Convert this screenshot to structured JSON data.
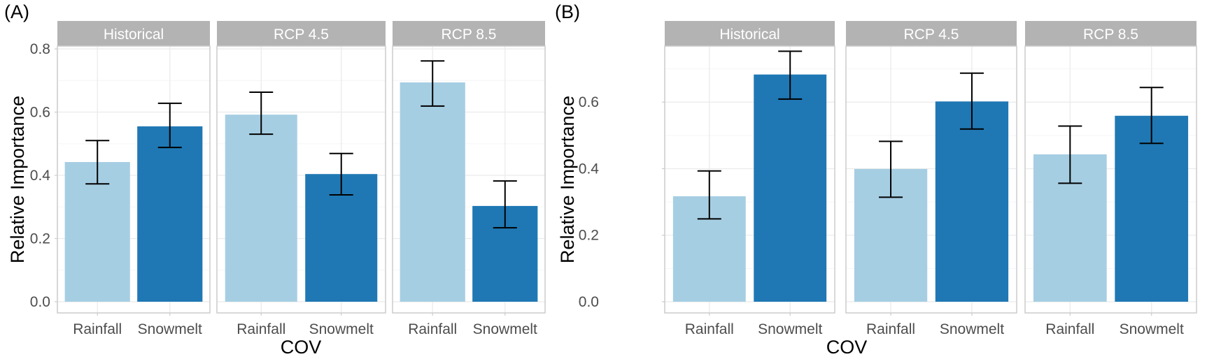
{
  "chart_data": [
    {
      "type": "bar",
      "panel_label": "(A)",
      "xlabel": "COV",
      "ylabel": "Relative Importance",
      "ylim": [
        -0.03,
        0.8
      ],
      "yticks": [
        0.0,
        0.2,
        0.4,
        0.6,
        0.8
      ],
      "ytick_labels": [
        "0.0",
        "0.2",
        "0.4",
        "0.6",
        "0.8"
      ],
      "grid": true,
      "categories": [
        "Rainfall",
        "Snowmelt"
      ],
      "colors": {
        "Rainfall": "#a6cee3",
        "Snowmelt": "#1f78b4"
      },
      "facets": [
        {
          "title": "Historical",
          "values": [
            0.442,
            0.555
          ],
          "err_low": [
            0.373,
            0.488
          ],
          "err_high": [
            0.51,
            0.628
          ]
        },
        {
          "title": "RCP 4.5",
          "values": [
            0.592,
            0.404
          ],
          "err_low": [
            0.53,
            0.338
          ],
          "err_high": [
            0.663,
            0.469
          ]
        },
        {
          "title": "RCP 8.5",
          "values": [
            0.694,
            0.303
          ],
          "err_low": [
            0.619,
            0.234
          ],
          "err_high": [
            0.762,
            0.382
          ]
        }
      ]
    },
    {
      "type": "bar",
      "panel_label": "(B)",
      "xlabel": "COV",
      "ylabel": "Relative Importance",
      "ylim": [
        -0.03,
        0.76
      ],
      "yticks": [
        0.0,
        0.2,
        0.4,
        0.6
      ],
      "ytick_labels": [
        "0.0",
        "0.2",
        "0.4",
        "0.6"
      ],
      "grid": true,
      "categories": [
        "Rainfall",
        "Snowmelt"
      ],
      "colors": {
        "Rainfall": "#a6cee3",
        "Snowmelt": "#1f78b4"
      },
      "facets": [
        {
          "title": "Historical",
          "values": [
            0.317,
            0.683
          ],
          "err_low": [
            0.249,
            0.609
          ],
          "err_high": [
            0.393,
            0.753
          ]
        },
        {
          "title": "RCP 4.5",
          "values": [
            0.399,
            0.602
          ],
          "err_low": [
            0.314,
            0.519
          ],
          "err_high": [
            0.482,
            0.687
          ]
        },
        {
          "title": "RCP 8.5",
          "values": [
            0.443,
            0.559
          ],
          "err_low": [
            0.356,
            0.476
          ],
          "err_high": [
            0.528,
            0.644
          ]
        }
      ]
    }
  ],
  "style": {
    "strip_bg": "#b3b3b3",
    "panel_border": "#cccccc",
    "grid_major": "#ebebeb",
    "grid_minor": "#f5f5f5",
    "errorbar": "#000000"
  }
}
